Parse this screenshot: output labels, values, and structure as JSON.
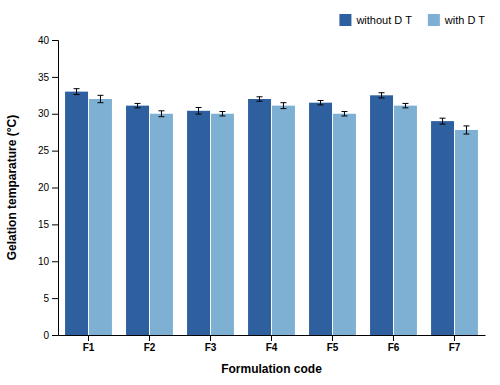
{
  "chart_data": {
    "type": "bar",
    "xlabel": "Formulation code",
    "ylabel": "Gelation temparature (°C)",
    "categories": [
      "F1",
      "F2",
      "F3",
      "F4",
      "F5",
      "F6",
      "F7"
    ],
    "series": [
      {
        "name": "without D T",
        "color": "#2E5F9E",
        "values": [
          33.0,
          31.1,
          30.4,
          32.0,
          31.5,
          32.5,
          29.0
        ],
        "errors": [
          0.4,
          0.3,
          0.45,
          0.3,
          0.3,
          0.35,
          0.4
        ]
      },
      {
        "name": "with D T",
        "color": "#7EB0D4",
        "values": [
          32.0,
          30.0,
          30.0,
          31.1,
          30.0,
          31.1,
          27.8
        ],
        "errors": [
          0.5,
          0.4,
          0.3,
          0.4,
          0.3,
          0.3,
          0.55
        ]
      }
    ],
    "ylim": [
      0,
      40
    ],
    "yticks": [
      0,
      5,
      10,
      15,
      20,
      25,
      30,
      35,
      40
    ],
    "grid": false,
    "legend": "upper right"
  }
}
